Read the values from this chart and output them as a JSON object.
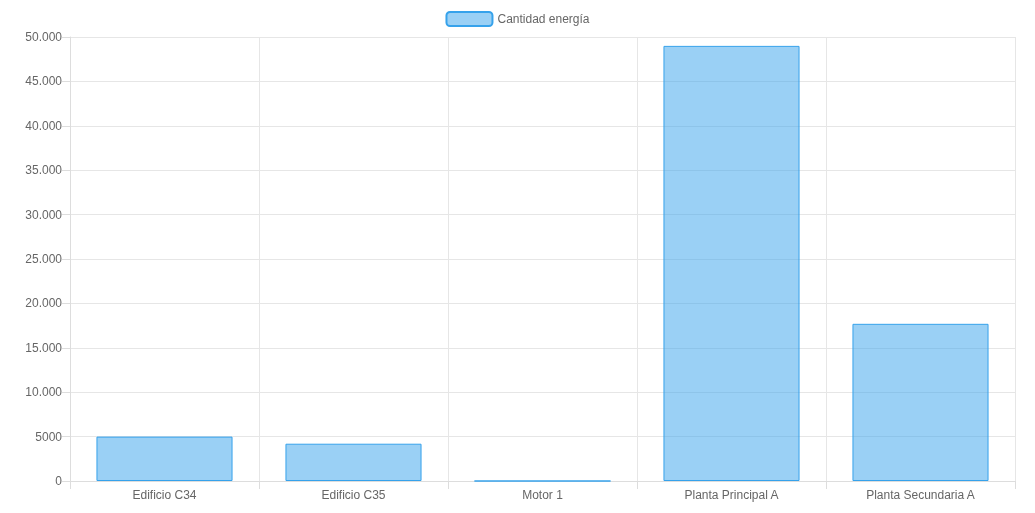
{
  "chart_data": {
    "type": "bar",
    "categories": [
      "Edificio C34",
      "Edificio C35",
      "Motor 1",
      "Planta Principal A",
      "Planta Secundaria A"
    ],
    "series": [
      {
        "name": "Cantidad energía",
        "color": "#36a2eb",
        "values": [
          5000,
          4200,
          0,
          49000,
          17700
        ]
      }
    ],
    "ylim": [
      0,
      50000
    ],
    "yticks": [
      0,
      5000,
      {
        "value": 10000,
        "label": "10.000"
      },
      {
        "value": 15000,
        "label": "15.000"
      },
      {
        "value": 20000,
        "label": "20.000"
      },
      {
        "value": 25000,
        "label": "25.000"
      },
      {
        "value": 30000,
        "label": "30.000"
      },
      {
        "value": 35000,
        "label": "35.000"
      },
      {
        "value": 40000,
        "label": "40.000"
      },
      {
        "value": 45000,
        "label": "45.000"
      },
      {
        "value": 50000,
        "label": "50.000"
      }
    ],
    "grid": true,
    "legend": "top"
  }
}
